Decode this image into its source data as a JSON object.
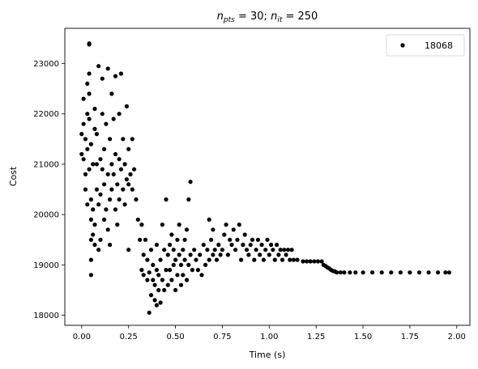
{
  "chart_data": {
    "type": "scatter",
    "title_parts": {
      "n1": "n",
      "s1": "pts",
      "eq1": " = 30; ",
      "n2": "n",
      "s2": "it",
      "eq2": " = 250"
    },
    "xlabel": "Time (s)",
    "ylabel": "Cost",
    "xlim": [
      -0.09,
      2.07
    ],
    "ylim": [
      17800,
      23700
    ],
    "x_ticks": [
      0.0,
      0.25,
      0.5,
      0.75,
      1.0,
      1.25,
      1.5,
      1.75,
      2.0
    ],
    "x_tick_labels": [
      "0.00",
      "0.25",
      "0.50",
      "0.75",
      "1.00",
      "1.25",
      "1.50",
      "1.75",
      "2.00"
    ],
    "y_ticks": [
      18000,
      19000,
      20000,
      21000,
      22000,
      23000
    ],
    "y_tick_labels": [
      "18000",
      "19000",
      "20000",
      "21000",
      "22000",
      "23000"
    ],
    "grid": false,
    "legend_position": "top-right",
    "series": [
      {
        "name": "18068",
        "color": "#000000",
        "marker": "circle",
        "points": [
          [
            0.0,
            21600
          ],
          [
            0.0,
            21200
          ],
          [
            0.01,
            22300
          ],
          [
            0.01,
            21800
          ],
          [
            0.01,
            21100
          ],
          [
            0.02,
            20800
          ],
          [
            0.02,
            20500
          ],
          [
            0.02,
            21500
          ],
          [
            0.03,
            22600
          ],
          [
            0.03,
            22000
          ],
          [
            0.03,
            21300
          ],
          [
            0.03,
            20200
          ],
          [
            0.04,
            23380
          ],
          [
            0.04,
            23400
          ],
          [
            0.04,
            22800
          ],
          [
            0.04,
            22400
          ],
          [
            0.04,
            21900
          ],
          [
            0.04,
            20900
          ],
          [
            0.05,
            21400
          ],
          [
            0.05,
            20300
          ],
          [
            0.05,
            19900
          ],
          [
            0.05,
            19500
          ],
          [
            0.05,
            19100
          ],
          [
            0.05,
            18800
          ],
          [
            0.06,
            21000
          ],
          [
            0.06,
            20100
          ],
          [
            0.06,
            19600
          ],
          [
            0.07,
            19800
          ],
          [
            0.07,
            19400
          ],
          [
            0.07,
            22100
          ],
          [
            0.07,
            21700
          ],
          [
            0.08,
            20500
          ],
          [
            0.08,
            21000
          ],
          [
            0.08,
            21600
          ],
          [
            0.09,
            20200
          ],
          [
            0.09,
            19300
          ],
          [
            0.09,
            22950
          ],
          [
            0.1,
            21100
          ],
          [
            0.1,
            20400
          ],
          [
            0.1,
            19500
          ],
          [
            0.11,
            22700
          ],
          [
            0.11,
            22000
          ],
          [
            0.11,
            20900
          ],
          [
            0.12,
            21300
          ],
          [
            0.12,
            20600
          ],
          [
            0.12,
            19900
          ],
          [
            0.13,
            21800
          ],
          [
            0.13,
            20100
          ],
          [
            0.14,
            22900
          ],
          [
            0.14,
            20800
          ],
          [
            0.14,
            19700
          ],
          [
            0.15,
            21500
          ],
          [
            0.15,
            20300
          ],
          [
            0.15,
            19400
          ],
          [
            0.16,
            22400
          ],
          [
            0.16,
            21000
          ],
          [
            0.16,
            20500
          ],
          [
            0.17,
            21900
          ],
          [
            0.17,
            20800
          ],
          [
            0.18,
            22750
          ],
          [
            0.18,
            21200
          ],
          [
            0.18,
            20100
          ],
          [
            0.19,
            20600
          ],
          [
            0.19,
            19800
          ],
          [
            0.2,
            21100
          ],
          [
            0.2,
            20300
          ],
          [
            0.2,
            22000
          ],
          [
            0.21,
            22800
          ],
          [
            0.21,
            20900
          ],
          [
            0.22,
            21500
          ],
          [
            0.22,
            20500
          ],
          [
            0.23,
            21000
          ],
          [
            0.23,
            20200
          ],
          [
            0.24,
            20700
          ],
          [
            0.24,
            22150
          ],
          [
            0.25,
            21300
          ],
          [
            0.25,
            20600
          ],
          [
            0.25,
            19300
          ],
          [
            0.26,
            20800
          ],
          [
            0.27,
            21500
          ],
          [
            0.27,
            20500
          ],
          [
            0.28,
            20900
          ],
          [
            0.29,
            20300
          ],
          [
            0.3,
            19900
          ],
          [
            0.31,
            19500
          ],
          [
            0.32,
            18900
          ],
          [
            0.32,
            19800
          ],
          [
            0.33,
            19200
          ],
          [
            0.33,
            18800
          ],
          [
            0.34,
            19500
          ],
          [
            0.35,
            18700
          ],
          [
            0.35,
            19100
          ],
          [
            0.36,
            18050
          ],
          [
            0.36,
            18850
          ],
          [
            0.37,
            18400
          ],
          [
            0.37,
            19300
          ],
          [
            0.38,
            18700
          ],
          [
            0.38,
            19000
          ],
          [
            0.39,
            18300
          ],
          [
            0.39,
            18600
          ],
          [
            0.4,
            18200
          ],
          [
            0.4,
            18900
          ],
          [
            0.4,
            19400
          ],
          [
            0.41,
            18500
          ],
          [
            0.41,
            18800
          ],
          [
            0.42,
            18250
          ],
          [
            0.42,
            19100
          ],
          [
            0.43,
            18700
          ],
          [
            0.43,
            19800
          ],
          [
            0.44,
            18500
          ],
          [
            0.44,
            19300
          ],
          [
            0.45,
            20300
          ],
          [
            0.45,
            18900
          ],
          [
            0.46,
            18600
          ],
          [
            0.46,
            19200
          ],
          [
            0.47,
            18900
          ],
          [
            0.47,
            19400
          ],
          [
            0.48,
            19600
          ],
          [
            0.48,
            18700
          ],
          [
            0.49,
            19000
          ],
          [
            0.49,
            19300
          ],
          [
            0.5,
            18500
          ],
          [
            0.5,
            19100
          ],
          [
            0.51,
            19500
          ],
          [
            0.51,
            18800
          ],
          [
            0.52,
            19800
          ],
          [
            0.52,
            19200
          ],
          [
            0.53,
            18600
          ],
          [
            0.53,
            19000
          ],
          [
            0.54,
            19300
          ],
          [
            0.54,
            18800
          ],
          [
            0.55,
            19500
          ],
          [
            0.55,
            19100
          ],
          [
            0.56,
            18700
          ],
          [
            0.56,
            19700
          ],
          [
            0.57,
            19000
          ],
          [
            0.57,
            20300
          ],
          [
            0.58,
            20650
          ],
          [
            0.58,
            19200
          ],
          [
            0.59,
            18900
          ],
          [
            0.6,
            19300
          ],
          [
            0.61,
            19100
          ],
          [
            0.62,
            18900
          ],
          [
            0.63,
            19200
          ],
          [
            0.64,
            18800
          ],
          [
            0.65,
            19400
          ],
          [
            0.66,
            19000
          ],
          [
            0.67,
            19300
          ],
          [
            0.68,
            19900
          ],
          [
            0.68,
            19100
          ],
          [
            0.69,
            19500
          ],
          [
            0.7,
            19700
          ],
          [
            0.7,
            19200
          ],
          [
            0.71,
            19300
          ],
          [
            0.72,
            19100
          ],
          [
            0.73,
            19400
          ],
          [
            0.74,
            19200
          ],
          [
            0.75,
            19300
          ],
          [
            0.76,
            19600
          ],
          [
            0.77,
            19800
          ],
          [
            0.78,
            19200
          ],
          [
            0.79,
            19500
          ],
          [
            0.8,
            19400
          ],
          [
            0.81,
            19700
          ],
          [
            0.82,
            19300
          ],
          [
            0.83,
            19500
          ],
          [
            0.84,
            19800
          ],
          [
            0.85,
            19100
          ],
          [
            0.86,
            19400
          ],
          [
            0.87,
            19600
          ],
          [
            0.88,
            19300
          ],
          [
            0.89,
            19200
          ],
          [
            0.9,
            19400
          ],
          [
            0.91,
            19500
          ],
          [
            0.92,
            19100
          ],
          [
            0.93,
            19300
          ],
          [
            0.94,
            19500
          ],
          [
            0.95,
            19200
          ],
          [
            0.96,
            19400
          ],
          [
            0.97,
            19100
          ],
          [
            0.98,
            19300
          ],
          [
            0.99,
            19500
          ],
          [
            1.0,
            19200
          ],
          [
            1.01,
            19400
          ],
          [
            1.02,
            19300
          ],
          [
            1.03,
            19100
          ],
          [
            1.04,
            19400
          ],
          [
            1.05,
            19200
          ],
          [
            1.06,
            19300
          ],
          [
            1.07,
            19100
          ],
          [
            1.08,
            19300
          ],
          [
            1.09,
            19200
          ],
          [
            1.1,
            19300
          ],
          [
            1.11,
            19100
          ],
          [
            1.12,
            19300
          ],
          [
            1.13,
            19100
          ],
          [
            1.15,
            19100
          ],
          [
            1.18,
            19070
          ],
          [
            1.2,
            19070
          ],
          [
            1.22,
            19070
          ],
          [
            1.24,
            19070
          ],
          [
            1.26,
            19070
          ],
          [
            1.28,
            19070
          ],
          [
            1.29,
            19000
          ],
          [
            1.3,
            18980
          ],
          [
            1.31,
            18950
          ],
          [
            1.32,
            18930
          ],
          [
            1.33,
            18900
          ],
          [
            1.34,
            18880
          ],
          [
            1.35,
            18870
          ],
          [
            1.36,
            18850
          ],
          [
            1.38,
            18850
          ],
          [
            1.4,
            18850
          ],
          [
            1.43,
            18850
          ],
          [
            1.46,
            18850
          ],
          [
            1.5,
            18850
          ],
          [
            1.55,
            18850
          ],
          [
            1.6,
            18850
          ],
          [
            1.65,
            18850
          ],
          [
            1.7,
            18850
          ],
          [
            1.75,
            18850
          ],
          [
            1.8,
            18850
          ],
          [
            1.85,
            18850
          ],
          [
            1.9,
            18850
          ],
          [
            1.94,
            18850
          ],
          [
            1.96,
            18850
          ]
        ]
      }
    ]
  }
}
